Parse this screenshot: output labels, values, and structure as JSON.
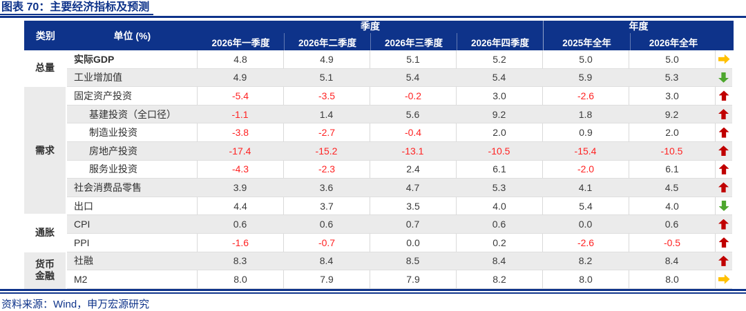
{
  "title": "图表 70：主要经济指标及预测",
  "source": "资料来源：Wind，申万宏源研究",
  "colors": {
    "navy": "#0E338A",
    "negative_red": "#FF2222",
    "arrow_up_red": "#C00000",
    "arrow_down_green": "#4EA72E",
    "arrow_right_yellow": "#FFC000",
    "band_gray": "#EBEBEB"
  },
  "chart_data": {
    "type": "table",
    "title": "图表 70：主要经济指标及预测",
    "header": {
      "category": "类别",
      "unit": "单位 (%)",
      "quarter_group": "季度",
      "year_group": "年度",
      "columns": [
        "2026年一季度",
        "2026年二季度",
        "2026年三季度",
        "2026年四季度",
        "2025年全年",
        "2026年全年"
      ]
    },
    "groups": [
      {
        "label": "总量"
      },
      {
        "label": "需求"
      },
      {
        "label": "通胀"
      },
      {
        "label": "货币",
        "label2": "金融"
      }
    ],
    "rows": [
      {
        "label": "实际GDP",
        "values": [
          "4.8",
          "4.9",
          "5.1",
          "5.2",
          "5.0",
          "5.0"
        ],
        "trend": "arrow-right-yellow"
      },
      {
        "label": "工业增加值",
        "values": [
          "4.9",
          "5.1",
          "5.4",
          "5.4",
          "5.9",
          "5.3"
        ],
        "trend": "arrow-down-green"
      },
      {
        "label": "固定资产投资",
        "values": [
          "-5.4",
          "-3.5",
          "-0.2",
          "3.0",
          "-2.6",
          "3.0"
        ],
        "trend": "arrow-up-red"
      },
      {
        "label": "基建投资（全口径）",
        "values": [
          "-1.1",
          "1.4",
          "5.6",
          "9.2",
          "1.8",
          "9.2"
        ],
        "trend": "arrow-up-red"
      },
      {
        "label": "制造业投资",
        "values": [
          "-3.8",
          "-2.7",
          "-0.4",
          "2.0",
          "0.9",
          "2.0"
        ],
        "trend": "arrow-up-red"
      },
      {
        "label": "房地产投资",
        "values": [
          "-17.4",
          "-15.2",
          "-13.1",
          "-10.5",
          "-15.4",
          "-10.5"
        ],
        "trend": "arrow-up-red"
      },
      {
        "label": "服务业投资",
        "values": [
          "-4.3",
          "-2.3",
          "2.4",
          "6.1",
          "-2.0",
          "6.1"
        ],
        "trend": "arrow-up-red"
      },
      {
        "label": "社会消费品零售",
        "values": [
          "3.9",
          "3.6",
          "4.7",
          "5.3",
          "4.1",
          "4.5"
        ],
        "trend": "arrow-up-red"
      },
      {
        "label": "出口",
        "values": [
          "4.4",
          "3.7",
          "3.5",
          "4.0",
          "5.4",
          "4.0"
        ],
        "trend": "arrow-down-green"
      },
      {
        "label": "CPI",
        "values": [
          "0.6",
          "0.6",
          "0.7",
          "0.6",
          "0.0",
          "0.6"
        ],
        "trend": "arrow-up-red"
      },
      {
        "label": "PPI",
        "values": [
          "-1.6",
          "-0.7",
          "0.0",
          "0.2",
          "-2.6",
          "-0.5"
        ],
        "trend": "arrow-up-red"
      },
      {
        "label": "社融",
        "values": [
          "8.3",
          "8.4",
          "8.5",
          "8.4",
          "8.2",
          "8.4"
        ],
        "trend": "arrow-up-red"
      },
      {
        "label": "M2",
        "values": [
          "8.0",
          "7.9",
          "7.9",
          "8.2",
          "8.0",
          "8.0"
        ],
        "trend": "arrow-right-yellow"
      }
    ]
  }
}
